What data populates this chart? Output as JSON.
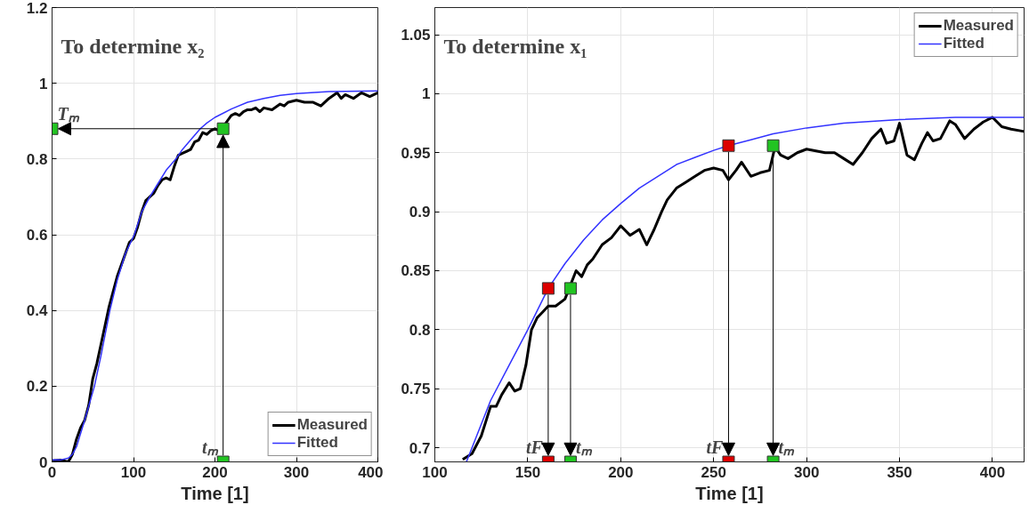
{
  "chart_data": [
    {
      "type": "line",
      "title": "To determine x₂",
      "xlabel": "Time [1]",
      "xlim": [
        0,
        400
      ],
      "ylim": [
        0,
        1.2
      ],
      "xticks": [
        0,
        100,
        200,
        300,
        400
      ],
      "yticks": [
        0,
        0.2,
        0.4,
        0.6,
        0.8,
        1,
        1.2
      ],
      "grid": true,
      "legend": "bottom right",
      "marker": "none",
      "line_style": "solid",
      "annotations": [
        {
          "text": "tₘ",
          "x": 210,
          "y": 0
        },
        {
          "text": "Tₘ",
          "x": 0,
          "y": 0.88
        }
      ],
      "series": [
        {
          "name": "Measured",
          "color": "#000000",
          "x": [
            0,
            10,
            20,
            25,
            30,
            35,
            40,
            45,
            50,
            55,
            60,
            65,
            70,
            75,
            80,
            85,
            90,
            95,
            100,
            105,
            110,
            115,
            120,
            125,
            130,
            135,
            140,
            145,
            150,
            155,
            160,
            165,
            170,
            175,
            180,
            185,
            190,
            195,
            200,
            205,
            210,
            215,
            220,
            225,
            230,
            235,
            240,
            245,
            250,
            255,
            260,
            270,
            280,
            285,
            290,
            300,
            310,
            320,
            330,
            340,
            350,
            355,
            360,
            370,
            380,
            390,
            400
          ],
          "values": [
            0.003,
            0.005,
            0,
            0.02,
            0.06,
            0.09,
            0.11,
            0.15,
            0.22,
            0.26,
            0.31,
            0.36,
            0.41,
            0.45,
            0.49,
            0.52,
            0.55,
            0.58,
            0.59,
            0.62,
            0.66,
            0.69,
            0.7,
            0.71,
            0.73,
            0.745,
            0.75,
            0.745,
            0.78,
            0.81,
            0.815,
            0.82,
            0.825,
            0.845,
            0.85,
            0.87,
            0.865,
            0.875,
            0.88,
            0.875,
            0.885,
            0.9,
            0.915,
            0.92,
            0.915,
            0.925,
            0.93,
            0.93,
            0.935,
            0.925,
            0.935,
            0.93,
            0.945,
            0.94,
            0.95,
            0.955,
            0.95,
            0.95,
            0.94,
            0.96,
            0.975,
            0.96,
            0.97,
            0.96,
            0.975,
            0.965,
            0.975
          ]
        },
        {
          "name": "Fitted",
          "color": "#3333ff",
          "x": [
            0,
            10,
            20,
            25,
            30,
            40,
            52,
            60,
            71,
            80,
            90,
            101,
            110,
            120,
            130,
            140,
            152,
            160,
            170,
            182,
            190,
            200,
            220,
            240,
            260,
            280,
            300,
            340,
            400
          ],
          "values": [
            0.005,
            0.005,
            0.01,
            0.02,
            0.04,
            0.11,
            0.2,
            0.28,
            0.4,
            0.48,
            0.55,
            0.6,
            0.66,
            0.7,
            0.735,
            0.77,
            0.8,
            0.825,
            0.85,
            0.88,
            0.895,
            0.91,
            0.932,
            0.95,
            0.96,
            0.968,
            0.973,
            0.978,
            0.98
          ]
        },
        {
          "type": "scatter",
          "marker": "square",
          "colors": [
            "#22c422",
            "#22c422",
            "#22c422"
          ],
          "x": [
            210,
            210,
            0
          ],
          "values": [
            0,
            0.88,
            0.88
          ]
        }
      ]
    },
    {
      "type": "line",
      "title": "To determine x₁",
      "xlabel": "Time [1]",
      "xlim": [
        100,
        417
      ],
      "ylim": [
        0.688,
        1.073
      ],
      "xticks": [
        100,
        150,
        200,
        250,
        300,
        350,
        400
      ],
      "yticks": [
        0.7,
        0.75,
        0.8,
        0.85,
        0.9,
        0.95,
        1,
        1.05
      ],
      "grid": true,
      "legend": "top right",
      "marker": "none",
      "line_style": "solid",
      "annotations": [
        {
          "text": "tF",
          "x": 161,
          "y": 0.688
        },
        {
          "text": "tₘ",
          "x": 173,
          "y": 0.688
        },
        {
          "text": "tF",
          "x": 258,
          "y": 0.688
        },
        {
          "text": "tₘ",
          "x": 282,
          "y": 0.688
        }
      ],
      "series": [
        {
          "name": "Measured",
          "color": "#000000",
          "x": [
            115,
            120,
            125,
            130,
            133,
            136,
            140,
            143,
            146,
            149,
            152,
            155,
            158,
            161,
            165,
            170,
            173,
            176,
            179,
            182,
            185,
            190,
            195,
            200,
            205,
            210,
            214,
            218,
            222,
            225,
            230,
            235,
            240,
            245,
            250,
            255,
            258,
            262,
            265,
            270,
            275,
            280,
            283,
            286,
            290,
            295,
            300,
            310,
            315,
            320,
            325,
            330,
            335,
            340,
            343,
            347,
            350,
            354,
            358,
            362,
            365,
            368,
            372,
            377,
            380,
            385,
            390,
            395,
            400,
            405,
            410,
            417
          ],
          "values": [
            0.69,
            0.695,
            0.71,
            0.735,
            0.735,
            0.745,
            0.755,
            0.748,
            0.75,
            0.77,
            0.8,
            0.81,
            0.815,
            0.82,
            0.82,
            0.826,
            0.838,
            0.85,
            0.845,
            0.855,
            0.86,
            0.872,
            0.878,
            0.888,
            0.88,
            0.885,
            0.872,
            0.885,
            0.9,
            0.91,
            0.92,
            0.925,
            0.93,
            0.935,
            0.937,
            0.935,
            0.927,
            0.935,
            0.942,
            0.93,
            0.933,
            0.935,
            0.955,
            0.948,
            0.945,
            0.95,
            0.953,
            0.95,
            0.95,
            0.945,
            0.94,
            0.95,
            0.962,
            0.97,
            0.958,
            0.96,
            0.975,
            0.948,
            0.944,
            0.958,
            0.967,
            0.96,
            0.962,
            0.977,
            0.974,
            0.962,
            0.97,
            0.976,
            0.98,
            0.972,
            0.97,
            0.968
          ]
        },
        {
          "name": "Fitted",
          "color": "#3333ff",
          "x": [
            117,
            125,
            130,
            140,
            150,
            161,
            170,
            180,
            190,
            200,
            210,
            220,
            230,
            240,
            250,
            258,
            270,
            282,
            300,
            320,
            350,
            380,
            417
          ],
          "values": [
            0.688,
            0.72,
            0.74,
            0.77,
            0.8,
            0.835,
            0.856,
            0.876,
            0.893,
            0.907,
            0.92,
            0.93,
            0.94,
            0.946,
            0.952,
            0.956,
            0.961,
            0.966,
            0.971,
            0.975,
            0.978,
            0.98,
            0.98
          ]
        },
        {
          "type": "scatter",
          "marker": "square",
          "colors": [
            "#dd0000",
            "#dd0000"
          ],
          "x": [
            161,
            161
          ],
          "values": [
            0.835,
            0.688
          ]
        },
        {
          "type": "scatter",
          "marker": "square",
          "colors": [
            "#22c422",
            "#22c422"
          ],
          "x": [
            173,
            173
          ],
          "values": [
            0.835,
            0.688
          ]
        },
        {
          "type": "scatter",
          "marker": "square",
          "colors": [
            "#dd0000",
            "#dd0000"
          ],
          "x": [
            258,
            258
          ],
          "values": [
            0.956,
            0.688
          ]
        },
        {
          "type": "scatter",
          "marker": "square",
          "colors": [
            "#22c422",
            "#22c422"
          ],
          "x": [
            282,
            282
          ],
          "values": [
            0.956,
            0.688
          ]
        }
      ]
    }
  ]
}
